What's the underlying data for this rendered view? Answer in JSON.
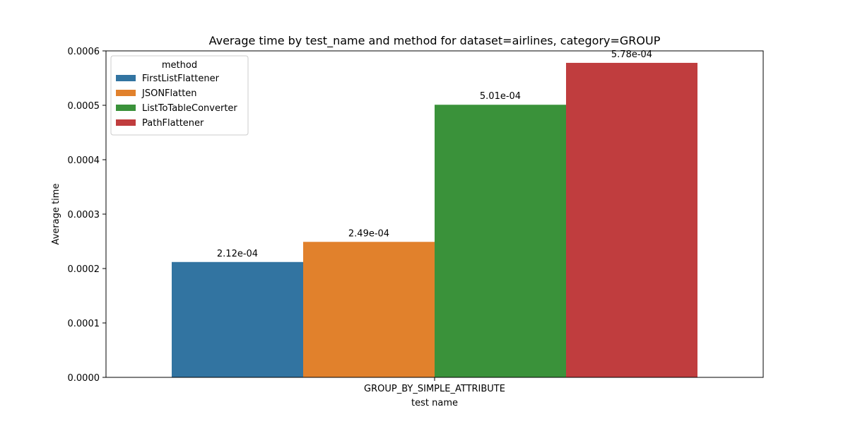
{
  "chart_data": {
    "type": "bar",
    "title": "Average time by test_name and method for dataset=airlines, category=GROUP",
    "xlabel": "test name",
    "ylabel": "Average time",
    "categories": [
      "GROUP_BY_SIMPLE_ATTRIBUTE"
    ],
    "ylim": [
      0,
      0.0006
    ],
    "yticks": [
      0.0,
      0.0001,
      0.0002,
      0.0003,
      0.0004,
      0.0005,
      0.0006
    ],
    "ytick_labels": [
      "0.0000",
      "0.0001",
      "0.0002",
      "0.0003",
      "0.0004",
      "0.0005",
      "0.0006"
    ],
    "grid": false,
    "legend": {
      "title": "method",
      "placement": "top-left"
    },
    "series": [
      {
        "name": "FirstListFlattener",
        "values": [
          0.000212
        ],
        "label": "2.12e-04",
        "color": "#3274a1"
      },
      {
        "name": "JSONFlatten",
        "values": [
          0.000249
        ],
        "label": "2.49e-04",
        "color": "#e1812c"
      },
      {
        "name": "ListToTableConverter",
        "values": [
          0.000501
        ],
        "label": "5.01e-04",
        "color": "#3a923a"
      },
      {
        "name": "PathFlattener",
        "values": [
          0.000578
        ],
        "label": "5.78e-04",
        "color": "#c03d3e"
      }
    ]
  }
}
